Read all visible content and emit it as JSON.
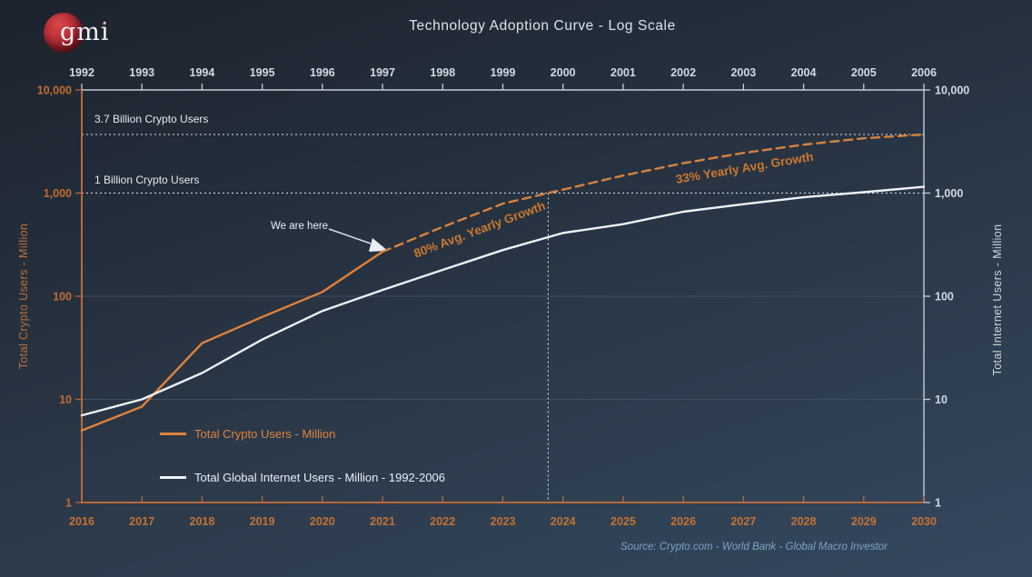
{
  "page": {
    "title": "Technology Adoption Curve - Log Scale",
    "source": "Source:   Crypto.com - World Bank - Global Macro Investor"
  },
  "logo": {
    "text": "gmi",
    "mark": "+"
  },
  "colors": {
    "accent_orange": "#e0823c",
    "axis_orange": "#b8693a",
    "label_orange": "#bf6d33",
    "line_white": "#edf2f8",
    "axis_light": "#c3ccd6",
    "grid": "#3d4e61",
    "reference_dotted": "#dde6ef"
  },
  "chart_data": {
    "type": "line",
    "y_scale": "log",
    "y_range": [
      1,
      10000
    ],
    "y_tick_values": [
      1,
      10,
      100,
      1000,
      10000
    ],
    "y_ticks": [
      "1",
      "10",
      "100",
      "1,000",
      "10,000"
    ],
    "left_axis_title": "Total Crypto Users - Million",
    "right_axis_title": "Total Internet Users - Million",
    "top_axis_years": [
      "1992",
      "1993",
      "1994",
      "1995",
      "1996",
      "1997",
      "1998",
      "1999",
      "2000",
      "2001",
      "2002",
      "2003",
      "2004",
      "2005",
      "2006"
    ],
    "bottom_axis_years": [
      "2016",
      "2017",
      "2018",
      "2019",
      "2020",
      "2021",
      "2022",
      "2023",
      "2024",
      "2025",
      "2026",
      "2027",
      "2028",
      "2029",
      "2030"
    ],
    "series": [
      {
        "name": "Total Crypto Users - Million",
        "axis": "bottom",
        "style": "solid",
        "color": "#e0823c",
        "x": [
          2016,
          2017,
          2018,
          2019,
          2020,
          2021
        ],
        "values": [
          5,
          8.5,
          35,
          63,
          110,
          270
        ]
      },
      {
        "name": "Crypto Users Projection (80% then 33% yearly growth)",
        "axis": "bottom",
        "style": "dashed",
        "color": "#d8823e",
        "x": [
          2021,
          2022,
          2023,
          2024,
          2025,
          2026,
          2027,
          2028,
          2029,
          2030
        ],
        "values": [
          270,
          470,
          790,
          1080,
          1480,
          1950,
          2450,
          2950,
          3400,
          3700
        ]
      },
      {
        "name": "Total Global Internet Users - Million - 1992-2006",
        "axis": "top",
        "style": "solid",
        "color": "#edf2f8",
        "x": [
          1992,
          1993,
          1994,
          1995,
          1996,
          1997,
          1998,
          1999,
          2000,
          2001,
          2002,
          2003,
          2004,
          2005,
          2006
        ],
        "values": [
          7,
          10,
          18,
          38,
          72,
          115,
          180,
          280,
          410,
          500,
          660,
          780,
          910,
          1020,
          1150
        ]
      }
    ],
    "reference_lines": [
      {
        "label": "3.7 Billion Crypto Users",
        "value": 3700
      },
      {
        "label": "1 Billion Crypto Users",
        "value": 1000
      }
    ],
    "vertical_marker": {
      "crosses_value": 1000,
      "on_series": 1,
      "down_to_value": 1
    },
    "gridline_values": [
      10,
      100
    ],
    "annotations": {
      "we_are_here": "We are here",
      "growth_80": "80% Avg. Yearly Growth",
      "growth_33": "33% Yearly Avg. Growth"
    },
    "legend": [
      {
        "label": "Total Crypto Users - Million",
        "color": "#e0823c"
      },
      {
        "label": "Total Global Internet Users - Million - 1992-2006",
        "color": "#edf2f8"
      }
    ]
  }
}
